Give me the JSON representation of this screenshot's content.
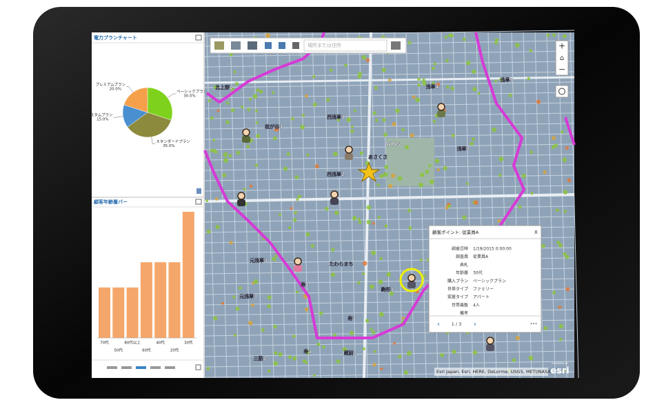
{
  "chart_data": [
    {
      "type": "pie",
      "title": "電力プランチャート",
      "categories": [
        "ベーシックプラン",
        "スタンダードプラン",
        "カスタムプラン",
        "プレミアムプラン"
      ],
      "values": [
        30,
        35,
        15,
        20
      ],
      "value_labels": [
        "30.0%",
        "35.0%",
        "15.0%",
        "20.0%"
      ],
      "colors": [
        "#7fd21c",
        "#8c8a3c",
        "#4a8fd0",
        "#f5a04a"
      ]
    },
    {
      "type": "bar",
      "title": "顧客年齢層バー",
      "categories": [
        "70代",
        "50代",
        "80代以上",
        "60代",
        "40代",
        "20代",
        "30代"
      ],
      "values": [
        2,
        2,
        2,
        3,
        3,
        3,
        5
      ],
      "color": "#f5a76b"
    }
  ],
  "map": {
    "search_placeholder": "場所または住所",
    "labels": [
      "北上野2",
      "松が谷3",
      "西浅草3",
      "西浅草2",
      "浅草4",
      "浅草3",
      "浅草2",
      "元浅草4",
      "元浅草3",
      "寿1",
      "駒形1",
      "寿3",
      "寿4",
      "蔵前1",
      "三筋2",
      "あさくさ",
      "たわらまち",
      "WINS"
    ],
    "attribution": "Esri Japan, Esri, HERE, DeLorme, USGS, METI/NASA",
    "powered_by": "POWERED BY",
    "brand": "esri"
  },
  "popup": {
    "title": "顧客ポイント: 従業員A",
    "close": "X",
    "fields": [
      {
        "label": "調査日時",
        "value": "1/19/2015 0:00:00"
      },
      {
        "label": "調査員",
        "value": "従業員A"
      },
      {
        "label": "表札"
      },
      {
        "label": "年齢層",
        "value": "30代"
      },
      {
        "label": "購入プラン",
        "value": "ベーシックプラン"
      },
      {
        "label": "世帯タイプ",
        "value": "ファミリー"
      },
      {
        "label": "家屋タイプ",
        "value": "アパート"
      },
      {
        "label": "世帯員数",
        "value": "4人"
      },
      {
        "label": "備考"
      }
    ],
    "pager": "1 / 3",
    "prev": "‹",
    "next": "›",
    "more": "•••"
  }
}
